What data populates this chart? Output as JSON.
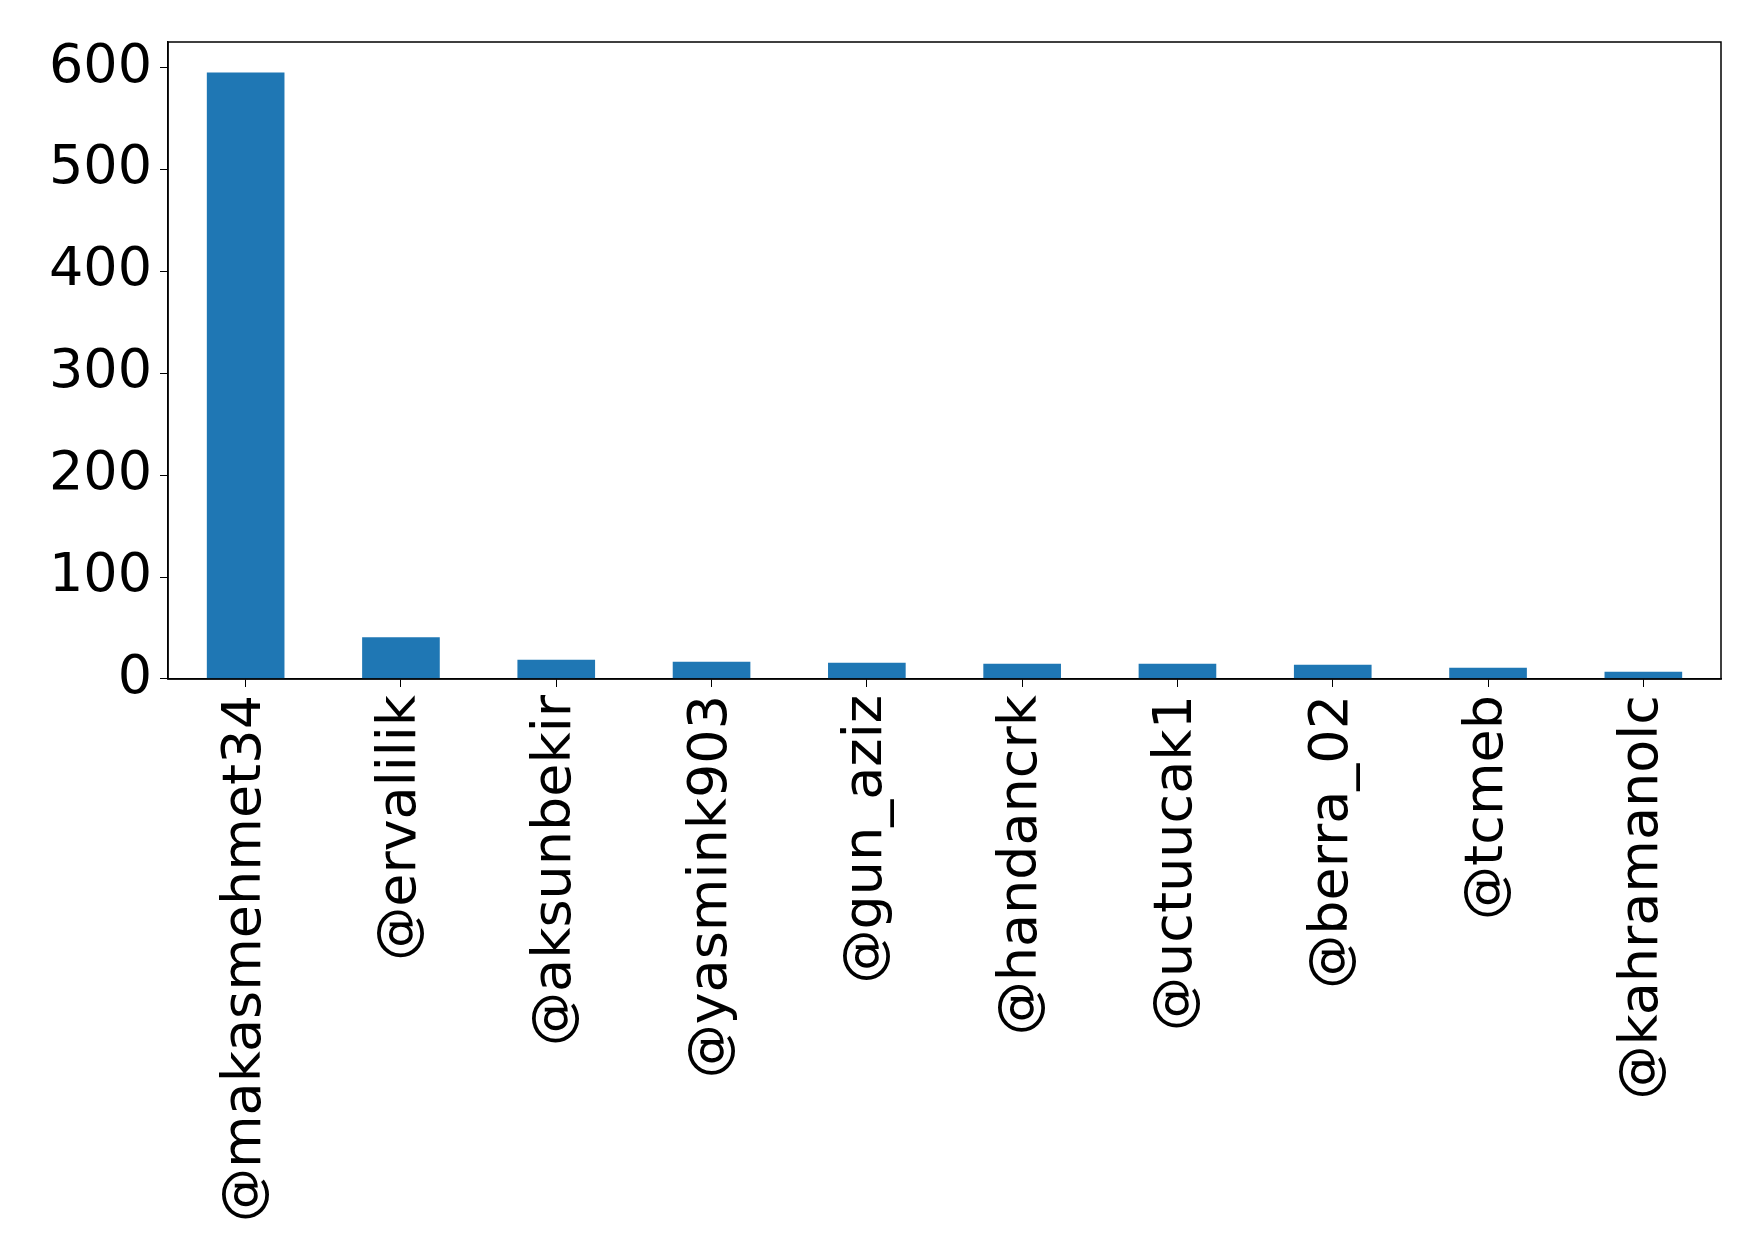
{
  "chart_data": {
    "type": "bar",
    "categories": [
      "@makasmehmet34",
      "@ervalilik",
      "@aksunbekir",
      "@yasmink903",
      "@gun_aziz",
      "@handancrk",
      "@uctuucak1",
      "@berra_02",
      "@tcmeb",
      "@kahramanolc"
    ],
    "values": [
      595,
      41,
      19,
      17,
      16,
      15,
      15,
      14,
      11,
      7
    ],
    "color": "#1f77b4",
    "ylim": [
      0,
      625
    ],
    "yticks": [
      0,
      100,
      200,
      300,
      400,
      500,
      600
    ],
    "grid": false,
    "legend": false
  }
}
